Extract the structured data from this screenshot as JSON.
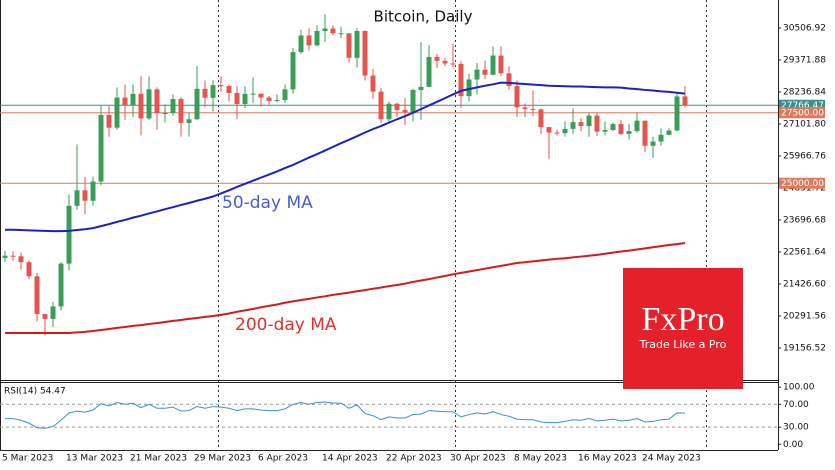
{
  "chart_data": [
    {
      "type": "candlestick",
      "title": "Bitcoin, Daily",
      "categories": [
        "5 Mar 2023",
        null,
        null,
        null,
        null,
        null,
        null,
        null,
        "13 Mar 2023",
        null,
        null,
        null,
        null,
        null,
        null,
        null,
        "21 Mar 2023",
        null,
        null,
        null,
        null,
        null,
        null,
        null,
        "29 Mar 2023",
        null,
        null,
        null,
        null,
        null,
        null,
        null,
        "6 Apr 2023",
        null,
        null,
        null,
        null,
        null,
        null,
        null,
        "14 Apr 2023",
        null,
        null,
        null,
        null,
        null,
        null,
        null,
        "22 Apr 2023",
        null,
        null,
        null,
        null,
        null,
        null,
        null,
        "30 Apr 2023",
        null,
        null,
        null,
        null,
        null,
        null,
        null,
        "8 May 2023",
        null,
        null,
        null,
        null,
        null,
        null,
        null,
        "16 May 2023",
        null,
        null,
        null,
        null,
        null,
        null,
        null,
        "24 May 2023",
        null,
        null,
        null,
        null,
        null
      ],
      "open": [
        22350,
        22430,
        22410,
        22200,
        21700,
        20360,
        20190,
        20630,
        22150,
        24200,
        24750,
        24380,
        25060,
        27420,
        26970,
        28040,
        27770,
        28170,
        27300,
        28330,
        27490,
        27490,
        27990,
        27140,
        27270,
        28350,
        28030,
        28480,
        28450,
        28200,
        27810,
        28170,
        28180,
        28040,
        27920,
        27950,
        28330,
        29650,
        30240,
        29890,
        30400,
        30490,
        30320,
        30320,
        29450,
        30400,
        28820,
        28250,
        27270,
        27820,
        27600,
        27520,
        28310,
        28420,
        29480,
        29340,
        29250,
        29230,
        28090,
        28680,
        29030,
        28850,
        29530,
        28900,
        28450,
        27690,
        27630,
        27620,
        26990,
        26800,
        26780,
        26930,
        27170,
        27030,
        27400,
        26830,
        26890,
        27100,
        26750,
        26850,
        27220,
        26330,
        26480,
        26720,
        26870,
        28080
      ],
      "high": [
        22600,
        22580,
        22550,
        22260,
        21820,
        20370,
        20800,
        22200,
        24600,
        26380,
        25220,
        25240,
        27750,
        27730,
        28400,
        28500,
        28500,
        28800,
        28780,
        28400,
        27800,
        28150,
        28050,
        27500,
        29150,
        28650,
        28650,
        28800,
        28500,
        28450,
        28430,
        28760,
        28180,
        28100,
        28150,
        28500,
        29800,
        30450,
        30500,
        30600,
        31000,
        30600,
        30550,
        30320,
        30500,
        30420,
        29050,
        28380,
        27900,
        27850,
        28020,
        28350,
        30000,
        29900,
        29580,
        29450,
        29950,
        29330,
        28880,
        29270,
        29350,
        29850,
        29850,
        29150,
        28650,
        27830,
        28300,
        27650,
        27000,
        26900,
        27200,
        27650,
        27300,
        27500,
        27500,
        27200,
        27150,
        27250,
        27100,
        27500,
        27220,
        26650,
        26950,
        26950,
        28200,
        28450
      ],
      "low": [
        22200,
        22250,
        21930,
        21600,
        20100,
        19600,
        19900,
        20480,
        21900,
        24060,
        23900,
        24200,
        24930,
        26650,
        26900,
        27240,
        27360,
        26700,
        27240,
        26900,
        27150,
        27400,
        26650,
        26650,
        27250,
        27700,
        27550,
        28250,
        27900,
        27270,
        27670,
        27850,
        27720,
        27800,
        27870,
        27850,
        28180,
        29600,
        29700,
        29850,
        30000,
        30250,
        30150,
        29280,
        29100,
        28650,
        28000,
        27130,
        27130,
        27350,
        27060,
        27200,
        27250,
        28400,
        29080,
        29150,
        29100,
        27680,
        27900,
        28150,
        28700,
        28830,
        28800,
        28320,
        27350,
        27350,
        27380,
        26750,
        25870,
        26700,
        26650,
        26750,
        26850,
        26650,
        26680,
        26700,
        26850,
        26700,
        26550,
        26800,
        26100,
        25900,
        26340,
        26700,
        26840,
        27700
      ],
      "close": [
        22430,
        22410,
        22200,
        21700,
        20360,
        20190,
        20630,
        22150,
        24200,
        24750,
        24380,
        25060,
        27420,
        26970,
        28040,
        27770,
        28170,
        27300,
        28330,
        27490,
        27490,
        27990,
        27140,
        27270,
        28350,
        28030,
        28480,
        28450,
        28200,
        27810,
        28170,
        28180,
        28040,
        27920,
        27950,
        28330,
        29650,
        30240,
        29890,
        30400,
        30490,
        30320,
        30320,
        29450,
        30400,
        28820,
        28250,
        27270,
        27820,
        27600,
        27520,
        28310,
        28420,
        29480,
        29340,
        29250,
        29230,
        28090,
        28680,
        29030,
        28850,
        29530,
        28900,
        28450,
        27690,
        27630,
        27620,
        26990,
        26800,
        26780,
        26930,
        27170,
        27030,
        27400,
        26830,
        26890,
        27100,
        26750,
        26850,
        27220,
        26330,
        26480,
        26720,
        26870,
        28080,
        27766.47
      ],
      "up_color": "#3a9e58",
      "down_color": "#e4554f",
      "series": [
        {
          "name": "50-day MA",
          "color": "#1a22c4",
          "label_color": "#4a5cd0",
          "values": [
            23350,
            23350,
            23340,
            23330,
            23320,
            23310,
            23300,
            23300,
            23310,
            23340,
            23370,
            23410,
            23480,
            23550,
            23630,
            23700,
            23780,
            23850,
            23930,
            24000,
            24080,
            24150,
            24230,
            24300,
            24380,
            24450,
            24530,
            24640,
            24750,
            24870,
            24980,
            25090,
            25200,
            25310,
            25420,
            25540,
            25650,
            25780,
            25910,
            26030,
            26160,
            26290,
            26420,
            26540,
            26670,
            26800,
            26920,
            27030,
            27150,
            27270,
            27380,
            27500,
            27630,
            27760,
            27890,
            28020,
            28150,
            28280,
            28340,
            28400,
            28460,
            28510,
            28570,
            28560,
            28540,
            28520,
            28500,
            28480,
            28460,
            28450,
            28440,
            28430,
            28430,
            28420,
            28410,
            28400,
            28400,
            28390,
            28360,
            28340,
            28310,
            28290,
            28260,
            28240,
            28210,
            28180
          ]
        },
        {
          "name": "200-day MA",
          "color": "#d41b1b",
          "label_color": "#e0302a",
          "values": [
            19690,
            19690,
            19690,
            19690,
            19690,
            19690,
            19690,
            19690,
            19690,
            19710,
            19730,
            19760,
            19795,
            19830,
            19870,
            19900,
            19940,
            19970,
            20010,
            20040,
            20080,
            20120,
            20150,
            20190,
            20220,
            20260,
            20290,
            20330,
            20380,
            20440,
            20490,
            20540,
            20600,
            20650,
            20700,
            20760,
            20810,
            20860,
            20900,
            20950,
            20990,
            21040,
            21080,
            21120,
            21170,
            21210,
            21260,
            21300,
            21350,
            21390,
            21440,
            21500,
            21550,
            21600,
            21660,
            21710,
            21770,
            21820,
            21870,
            21920,
            21970,
            22020,
            22070,
            22120,
            22170,
            22200,
            22230,
            22260,
            22290,
            22320,
            22340,
            22370,
            22400,
            22430,
            22460,
            22500,
            22540,
            22580,
            22610,
            22650,
            22690,
            22730,
            22770,
            22810,
            22840,
            22880
          ]
        }
      ],
      "ylim": [
        18021.48,
        31500
      ],
      "yticks": [
        30506.92,
        29371.88,
        28236.84,
        {
          "value": 27101.8,
          "label": "27101.80"
        },
        25966.76,
        24831.72,
        23696.68,
        22561.64,
        {
          "value": 21426.6,
          "label": "21426.60"
        },
        20291.56,
        19156.52
      ],
      "price_levels": [
        27766.47,
        {
          "value": 27500,
          "label": "27500.00"
        },
        {
          "value": 25000,
          "label": "25000.00"
        }
      ],
      "price_level_colors": [
        "#3a8f8f",
        "#e2785c",
        "#e2785c"
      ]
    },
    {
      "type": "line",
      "title": "RSI(14) 54.47",
      "series": [
        {
          "color": "#3a8fd8",
          "values": [
            45,
            45,
            42,
            37,
            29,
            28,
            31,
            42,
            55,
            58,
            56,
            60,
            71,
            67,
            73,
            70,
            72,
            64,
            70,
            63,
            63,
            65,
            58,
            59,
            66,
            63,
            66,
            65,
            63,
            59,
            62,
            62,
            60,
            59,
            59,
            62,
            70,
            73,
            70,
            73,
            74,
            72,
            72,
            63,
            69,
            54,
            50,
            43,
            48,
            46,
            46,
            52,
            53,
            59,
            58,
            57,
            57,
            48,
            52,
            55,
            53,
            57,
            52,
            49,
            44,
            43,
            43,
            39,
            38,
            38,
            40,
            43,
            42,
            45,
            41,
            42,
            44,
            41,
            42,
            45,
            39,
            40,
            43,
            44,
            55,
            54.47
          ]
        }
      ],
      "ylim": [
        -10,
        109
      ],
      "yticks": [
        {
          "value": 100,
          "label": "100.00"
        },
        {
          "value": 70,
          "label": "70.00"
        },
        {
          "value": 30,
          "label": "30.00"
        },
        {
          "value": 0,
          "label": "0.00"
        }
      ]
    }
  ]
}
